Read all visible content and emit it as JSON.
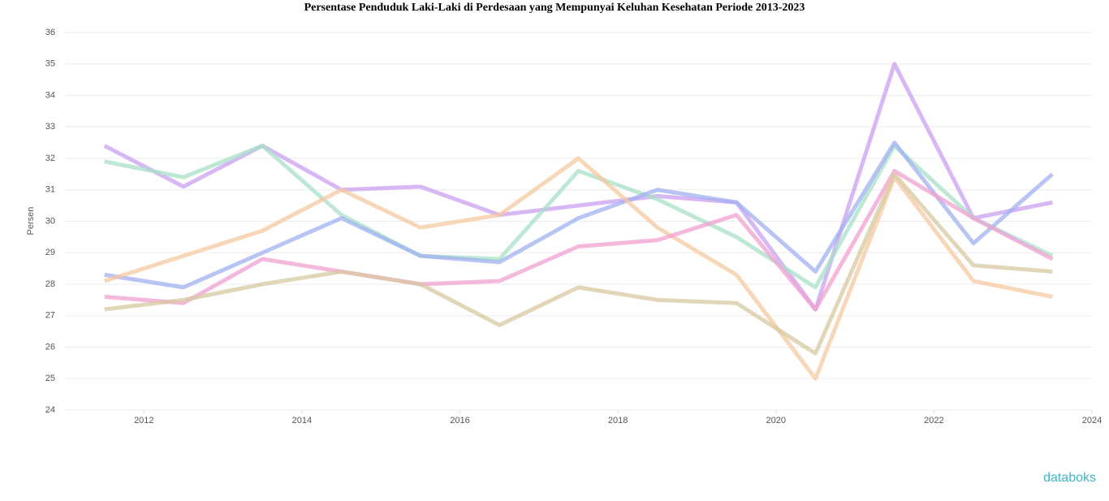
{
  "chart_data": {
    "type": "line",
    "title": "Persentase Penduduk Laki-Laki di Perdesaan yang Mempunyai Keluhan Kesehatan Periode 2013-2023",
    "y_label": "Persen",
    "x": [
      2011.5,
      2012.5,
      2013.5,
      2014.5,
      2015.5,
      2016.5,
      2017.5,
      2018.5,
      2019.5,
      2020.5,
      2021.5,
      2022.5,
      2023.5
    ],
    "xlim": [
      2011,
      2024
    ],
    "xticks": [
      2012,
      2014,
      2016,
      2018,
      2020,
      2022,
      2024
    ],
    "ylim": [
      24,
      36
    ],
    "yticks": [
      24,
      25,
      26,
      27,
      28,
      29,
      30,
      31,
      32,
      33,
      34,
      35,
      36
    ],
    "grid": true,
    "series": [
      {
        "color": "#c9a0f0",
        "values": [
          32.4,
          31.1,
          32.4,
          31.0,
          31.1,
          30.2,
          30.5,
          30.8,
          30.6,
          27.2,
          35.0,
          30.1,
          30.6
        ]
      },
      {
        "color": "#a8e0c8",
        "values": [
          31.9,
          31.4,
          32.4,
          30.2,
          28.9,
          28.8,
          31.6,
          30.7,
          29.5,
          27.9,
          32.4,
          30.1,
          28.9
        ]
      },
      {
        "color": "#a0b0f0",
        "values": [
          28.3,
          27.9,
          29.0,
          30.1,
          28.9,
          28.7,
          30.1,
          31.0,
          30.6,
          28.4,
          32.5,
          29.3,
          31.5
        ]
      },
      {
        "color": "#f5c8a0",
        "values": [
          28.1,
          28.9,
          29.7,
          31.0,
          29.8,
          30.2,
          32.0,
          29.8,
          28.3,
          25.0,
          31.4,
          28.1,
          27.6
        ]
      },
      {
        "color": "#f0a0d0",
        "values": [
          27.6,
          27.4,
          28.8,
          28.4,
          28.0,
          28.1,
          29.2,
          29.4,
          30.2,
          27.2,
          31.6,
          30.1,
          28.8
        ]
      },
      {
        "color": "#d8c8a0",
        "values": [
          27.2,
          27.5,
          28.0,
          28.4,
          28.0,
          26.7,
          27.9,
          27.5,
          27.4,
          25.8,
          31.5,
          28.6,
          28.4
        ]
      }
    ]
  },
  "footer": {
    "logo": "databoks"
  }
}
